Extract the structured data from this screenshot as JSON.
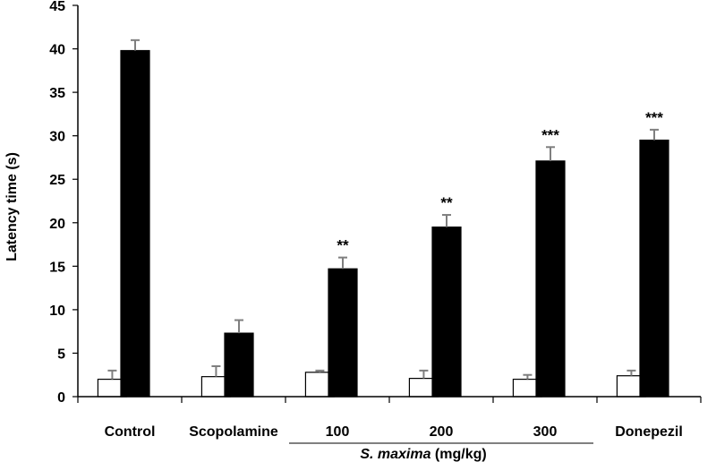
{
  "chart_data": {
    "type": "bar",
    "title": "",
    "ylabel": "Latency time (s)",
    "xlabel": "",
    "ylim": [
      0,
      45
    ],
    "yticks": [
      0,
      5,
      10,
      15,
      20,
      25,
      30,
      35,
      40,
      45
    ],
    "categories": [
      "Control",
      "Scopolamine",
      "100",
      "200",
      "300",
      "Donepezil"
    ],
    "group_label": {
      "prefix": "S. maxima",
      "suffix": " (mg/kg)",
      "spans_categories": [
        "100",
        "200",
        "300"
      ]
    },
    "series": [
      {
        "fill": "#ffffff",
        "values": [
          2.0,
          2.3,
          2.8,
          2.1,
          2.0,
          2.4
        ],
        "errors": [
          1.0,
          1.2,
          0.2,
          0.9,
          0.5,
          0.6
        ]
      },
      {
        "fill": "#000000",
        "values": [
          39.8,
          7.3,
          14.7,
          19.5,
          27.1,
          29.5
        ],
        "errors": [
          1.2,
          1.5,
          1.3,
          1.4,
          1.6,
          1.2
        ]
      }
    ],
    "significance": [
      "",
      "",
      "**",
      "**",
      "***",
      "***"
    ],
    "grid": false,
    "legend": "none",
    "error_bar_color": "#7f7f7f"
  }
}
